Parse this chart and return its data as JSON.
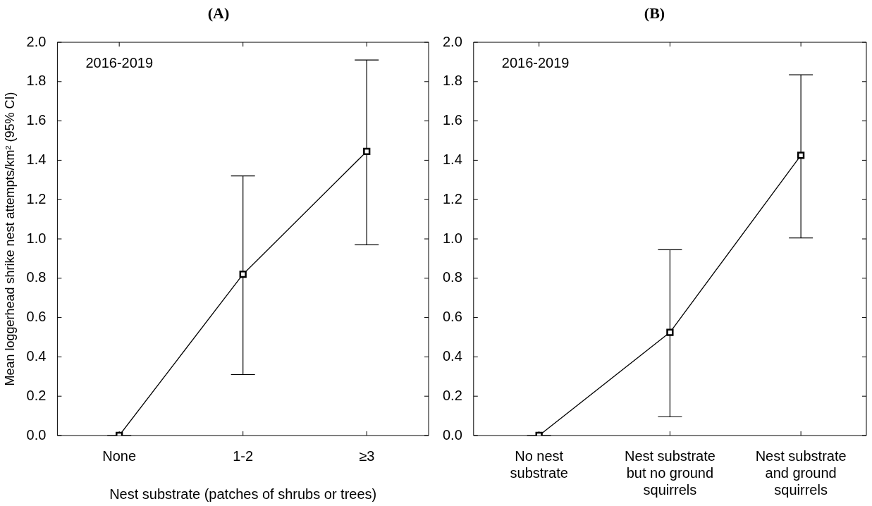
{
  "chart_data": [
    {
      "type": "line",
      "title": "(A)",
      "ylabel": "Mean loggerhead shrike nest attempts/km² (95% CI)",
      "xlabel": "Nest substrate (patches of shrubs or trees)",
      "categories": [
        "None",
        "1-2",
        "≥3"
      ],
      "series": [
        {
          "color": "#000000",
          "values": [
            0,
            0.82,
            1.445
          ],
          "errors": [
            [
              0,
              0
            ],
            [
              0.31,
              1.32
            ],
            [
              0.97,
              1.91
            ]
          ]
        }
      ],
      "ylim": [
        0,
        2
      ],
      "yticks": [
        {
          "value": 0,
          "label": "0.0"
        },
        0.2,
        0.4,
        0.6,
        0.8,
        {
          "value": 1,
          "label": "1.0"
        },
        1.2,
        1.4,
        1.6,
        1.8,
        {
          "value": 2,
          "label": "2.0"
        }
      ],
      "marker": "square",
      "line_style": "solid",
      "grid": false,
      "legend": false,
      "annotations": [
        "2016-2019"
      ]
    },
    {
      "type": "line",
      "title": "(B)",
      "categories": [
        "No nest substrate",
        "Nest substrate but no ground squirrels",
        "Nest substrate and ground squirrels"
      ],
      "series": [
        {
          "color": "#000000",
          "values": [
            0,
            0.525,
            1.425
          ],
          "errors": [
            [
              0,
              0
            ],
            [
              0.095,
              0.945
            ],
            [
              1.005,
              1.835
            ]
          ]
        }
      ],
      "ylim": [
        0,
        2
      ],
      "yticks": [
        {
          "value": 0,
          "label": "0.0"
        },
        0.2,
        0.4,
        0.6,
        0.8,
        {
          "value": 1,
          "label": "1.0"
        },
        1.2,
        1.4,
        1.6,
        1.8,
        {
          "value": 2,
          "label": "2.0"
        }
      ],
      "marker": "square",
      "line_style": "solid",
      "grid": false,
      "legend": false,
      "annotations": [
        "2016-2019"
      ]
    }
  ]
}
